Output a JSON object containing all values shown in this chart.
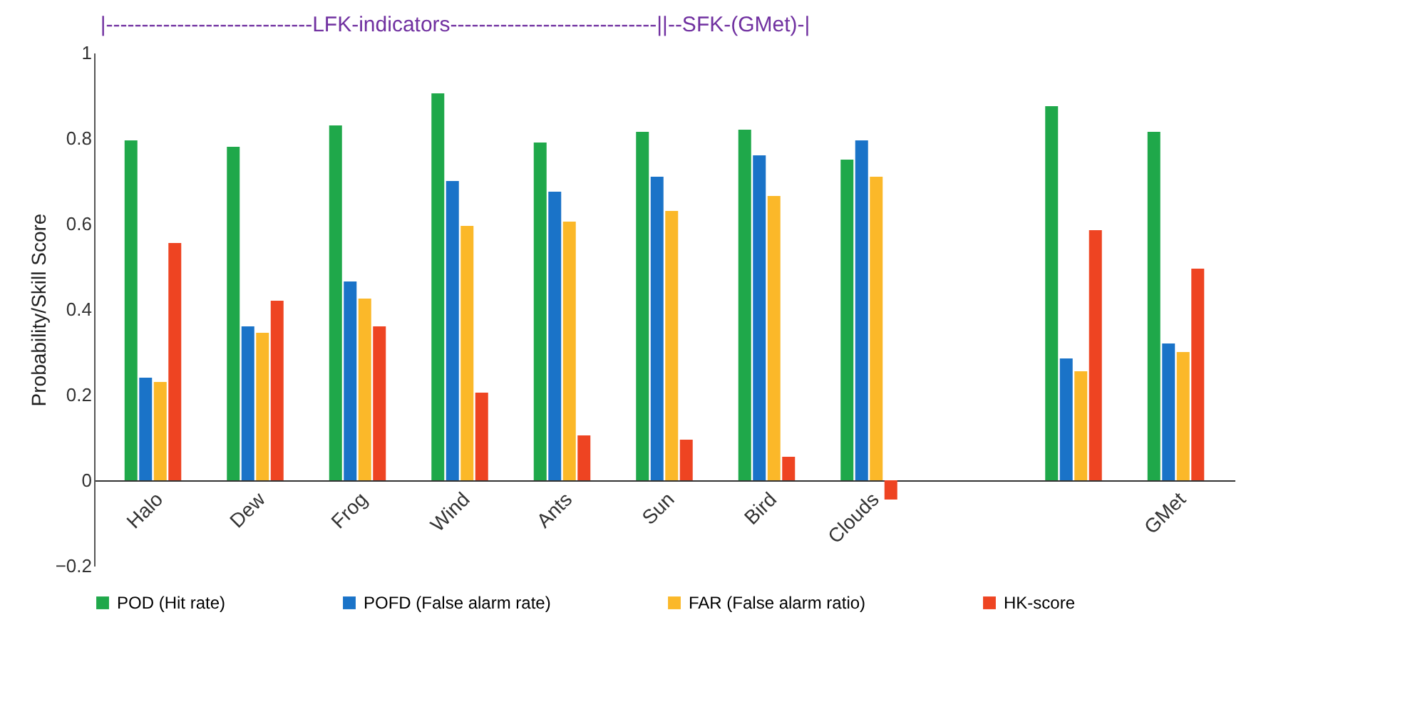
{
  "chart_data": {
    "type": "bar",
    "annotations": [
      "|-----------------------------LFK-indicators-----------------------------|",
      "|--SFK-(GMet)-|"
    ],
    "ylabel": "Probability/Skill Score",
    "categories": [
      "Halo",
      "Dew",
      "Frog",
      "Wind",
      "Ants",
      "Sun",
      "Bird",
      "Clouds",
      null,
      null,
      "GMet"
    ],
    "series": [
      {
        "name": "POD (Hit rate)",
        "color": "#1fa84a",
        "values": [
          0.795,
          0.78,
          0.83,
          0.905,
          0.79,
          0.815,
          0.82,
          0.75,
          null,
          0.875,
          0.815
        ]
      },
      {
        "name": "POFD (False alarm rate)",
        "color": "#1a73c8",
        "values": [
          0.24,
          0.36,
          0.465,
          0.7,
          0.675,
          0.71,
          0.76,
          0.795,
          null,
          0.285,
          0.32
        ]
      },
      {
        "name": "FAR (False alarm ratio)",
        "color": "#fbb829",
        "values": [
          0.23,
          0.345,
          0.425,
          0.595,
          0.605,
          0.63,
          0.665,
          0.71,
          null,
          0.255,
          0.3
        ]
      },
      {
        "name": "HK-score",
        "color": "#ee4422",
        "values": [
          0.555,
          0.42,
          0.36,
          0.205,
          0.105,
          0.095,
          0.055,
          -0.045,
          null,
          0.585,
          0.495
        ]
      }
    ],
    "ylim": [
      -0.2,
      1
    ],
    "yticks": [
      -0.2,
      0,
      0.2,
      0.4,
      0.6,
      0.8,
      1
    ],
    "grid": false,
    "legend": "bottom"
  }
}
